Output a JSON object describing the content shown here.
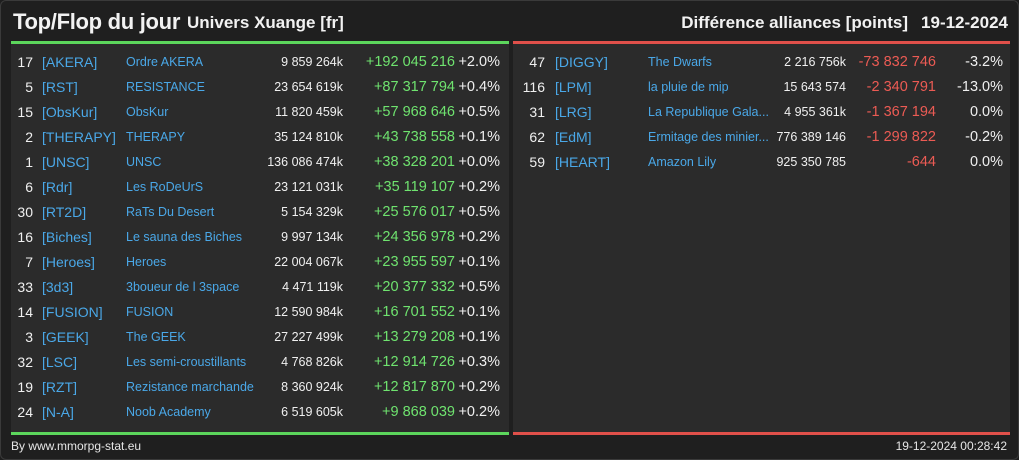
{
  "header": {
    "title": "Top/Flop du jour",
    "subtitle": "Univers Xuange [fr]",
    "section_title": "Différence alliances [points]",
    "date": "19-12-2024"
  },
  "colors": {
    "positive": "#6fe36f",
    "negative": "#ec5b54",
    "tag": "#4aa8e8",
    "top_border": "#5cd65c",
    "flop_border": "#e0504a"
  },
  "top": [
    {
      "rank": "17",
      "tag": "[AKERA]",
      "name": "Ordre AKERA",
      "members": "9 859 264k",
      "diff": "+192 045 216",
      "pct": "+2.0%"
    },
    {
      "rank": "5",
      "tag": "[RST]",
      "name": "RESISTANCE",
      "members": "23 654 619k",
      "diff": "+87 317 794",
      "pct": "+0.4%"
    },
    {
      "rank": "15",
      "tag": "[ObsKur]",
      "name": "ObsKur",
      "members": "11 820 459k",
      "diff": "+57 968 646",
      "pct": "+0.5%"
    },
    {
      "rank": "2",
      "tag": "[THERAPY]",
      "name": "THERAPY",
      "members": "35 124 810k",
      "diff": "+43 738 558",
      "pct": "+0.1%"
    },
    {
      "rank": "1",
      "tag": "[UNSC]",
      "name": "UNSC",
      "members": "136 086 474k",
      "diff": "+38 328 201",
      "pct": "+0.0%"
    },
    {
      "rank": "6",
      "tag": "[Rdr]",
      "name": "Les RoDeUrS",
      "members": "23 121 031k",
      "diff": "+35 119 107",
      "pct": "+0.2%"
    },
    {
      "rank": "30",
      "tag": "[RT2D]",
      "name": "RaTs Du Desert",
      "members": "5 154 329k",
      "diff": "+25 576 017",
      "pct": "+0.5%"
    },
    {
      "rank": "16",
      "tag": "[Biches]",
      "name": "Le sauna des Biches",
      "members": "9 997 134k",
      "diff": "+24 356 978",
      "pct": "+0.2%"
    },
    {
      "rank": "7",
      "tag": "[Heroes]",
      "name": "Heroes",
      "members": "22 004 067k",
      "diff": "+23 955 597",
      "pct": "+0.1%"
    },
    {
      "rank": "33",
      "tag": "[3d3]",
      "name": "3boueur de l 3space",
      "members": "4 471 119k",
      "diff": "+20 377 332",
      "pct": "+0.5%"
    },
    {
      "rank": "14",
      "tag": "[FUSION]",
      "name": "FUSION",
      "members": "12 590 984k",
      "diff": "+16 701 552",
      "pct": "+0.1%"
    },
    {
      "rank": "3",
      "tag": "[GEEK]",
      "name": "The GEEK",
      "members": "27 227 499k",
      "diff": "+13 279 208",
      "pct": "+0.1%"
    },
    {
      "rank": "32",
      "tag": "[LSC]",
      "name": "Les semi-croustillants",
      "members": "4 768 826k",
      "diff": "+12 914 726",
      "pct": "+0.3%"
    },
    {
      "rank": "19",
      "tag": "[RZT]",
      "name": "Rezistance marchande",
      "members": "8 360 924k",
      "diff": "+12 817 870",
      "pct": "+0.2%"
    },
    {
      "rank": "24",
      "tag": "[N-A]",
      "name": "Noob Academy",
      "members": "6 519 605k",
      "diff": "+9 868 039",
      "pct": "+0.2%"
    }
  ],
  "flop": [
    {
      "rank": "47",
      "tag": "[DIGGY]",
      "name": "The Dwarfs",
      "members": "2 216 756k",
      "diff": "-73 832 746",
      "pct": "-3.2%"
    },
    {
      "rank": "116",
      "tag": "[LPM]",
      "name": "la pluie de mip",
      "members": "15 643 574",
      "diff": "-2 340 791",
      "pct": "-13.0%"
    },
    {
      "rank": "31",
      "tag": "[LRG]",
      "name": "La Republique Gala...",
      "members": "4 955 361k",
      "diff": "-1 367 194",
      "pct": "0.0%"
    },
    {
      "rank": "62",
      "tag": "[EdM]",
      "name": "Ermitage des minier...",
      "members": "776 389 146",
      "diff": "-1 299 822",
      "pct": "-0.2%"
    },
    {
      "rank": "59",
      "tag": "[HEART]",
      "name": "Amazon Lily",
      "members": "925 350 785",
      "diff": "-644",
      "pct": "0.0%"
    }
  ],
  "footer": {
    "source": "By www.mmorpg-stat.eu",
    "timestamp": "19-12-2024 00:28:42"
  }
}
